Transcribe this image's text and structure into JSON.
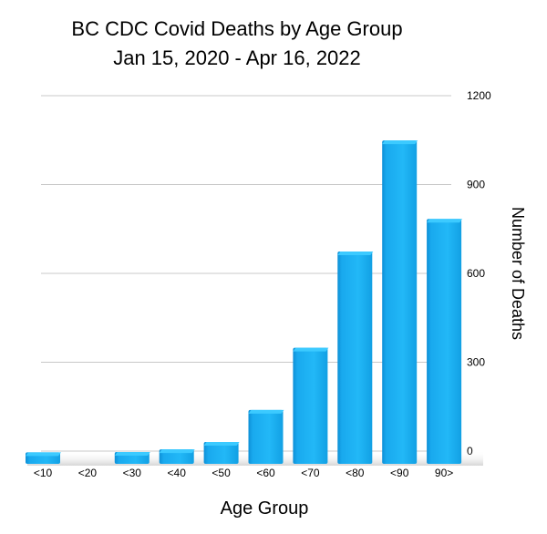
{
  "chart_data": {
    "type": "bar",
    "title": "BC CDC Covid Deaths by Age Group",
    "subtitle": "Jan 15, 2020 - Apr 16, 2022",
    "xlabel": "Age Group",
    "ylabel": "Number of Deaths",
    "categories": [
      "<10",
      "<20",
      "<30",
      "<40",
      "<50",
      "<60",
      "<70",
      "<80",
      "<90",
      "90>"
    ],
    "values": [
      2,
      0,
      3,
      12,
      37,
      145,
      355,
      680,
      1055,
      790
    ],
    "ylim": [
      0,
      1200
    ],
    "yticks": [
      0,
      300,
      600,
      900,
      1200
    ],
    "y_axis_side": "right",
    "grid": true,
    "style": "3d",
    "bar_color": "#1aaef0"
  }
}
